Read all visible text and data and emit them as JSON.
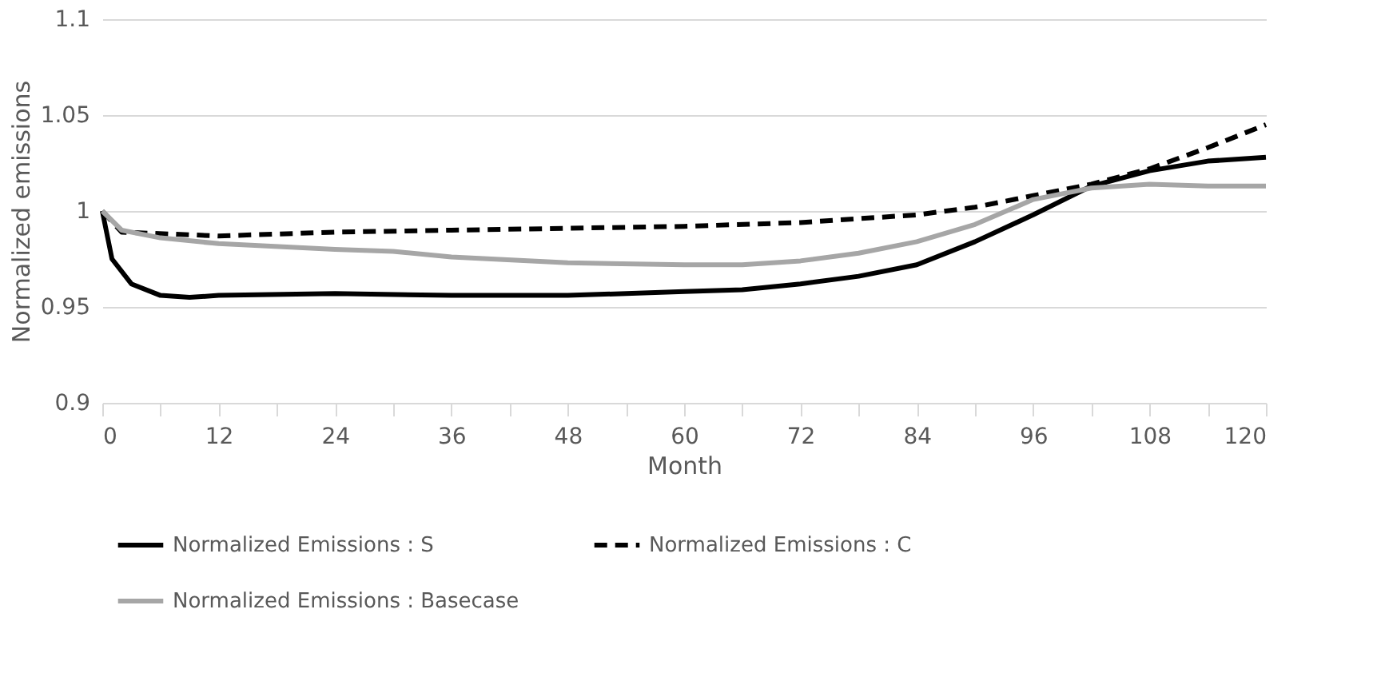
{
  "chart_data": {
    "type": "line",
    "xlabel": "Month",
    "ylabel": "Normalized emissions",
    "xlim": [
      0,
      120
    ],
    "ylim": [
      0.9,
      1.1
    ],
    "xticks": [
      0,
      {
        "value": 6,
        "label": null
      },
      12,
      {
        "value": 18,
        "label": null
      },
      24,
      {
        "value": 30,
        "label": null
      },
      36,
      {
        "value": 42,
        "label": null
      },
      48,
      {
        "value": 54,
        "label": null
      },
      60,
      {
        "value": 66,
        "label": null
      },
      72,
      {
        "value": 78,
        "label": null
      },
      84,
      {
        "value": 90,
        "label": null
      },
      96,
      {
        "value": 102,
        "label": null
      },
      108,
      {
        "value": 114,
        "label": null
      },
      120
    ],
    "yticks": [
      0.9,
      0.95,
      1,
      1.05,
      1.1
    ],
    "grid": "y",
    "legend": "bottom",
    "marker": "none",
    "series": [
      {
        "name": "Normalized Emissions : S",
        "color": "#000000",
        "line_style": "solid",
        "x": [
          0,
          1,
          3,
          6,
          9,
          12,
          24,
          36,
          48,
          60,
          66,
          72,
          78,
          84,
          90,
          96,
          102,
          108,
          114,
          120
        ],
        "values": [
          1,
          0.975,
          0.962,
          0.956,
          0.955,
          0.956,
          0.957,
          0.956,
          0.956,
          0.958,
          0.959,
          0.962,
          0.966,
          0.972,
          0.984,
          0.998,
          1.013,
          1.021,
          1.026,
          1.028
        ]
      },
      {
        "name": "Normalized Emissions : C",
        "color": "#000000",
        "line_style": "dashed",
        "x": [
          0,
          2,
          12,
          24,
          36,
          48,
          60,
          72,
          84,
          90,
          96,
          102,
          108,
          114,
          120
        ],
        "values": [
          1,
          0.989,
          0.987,
          0.989,
          0.99,
          0.991,
          0.992,
          0.994,
          0.998,
          1.002,
          1.008,
          1.014,
          1.022,
          1.033,
          1.045
        ]
      },
      {
        "name": "Normalized Emissions : Basecase",
        "color": "#a6a6a6",
        "line_style": "solid",
        "x": [
          0,
          2,
          6,
          12,
          24,
          30,
          36,
          48,
          60,
          66,
          72,
          78,
          84,
          90,
          96,
          102,
          108,
          114,
          120
        ],
        "values": [
          1,
          0.99,
          0.986,
          0.983,
          0.98,
          0.979,
          0.976,
          0.973,
          0.972,
          0.972,
          0.974,
          0.978,
          0.984,
          0.993,
          1.006,
          1.012,
          1.014,
          1.013,
          1.013
        ]
      }
    ]
  }
}
